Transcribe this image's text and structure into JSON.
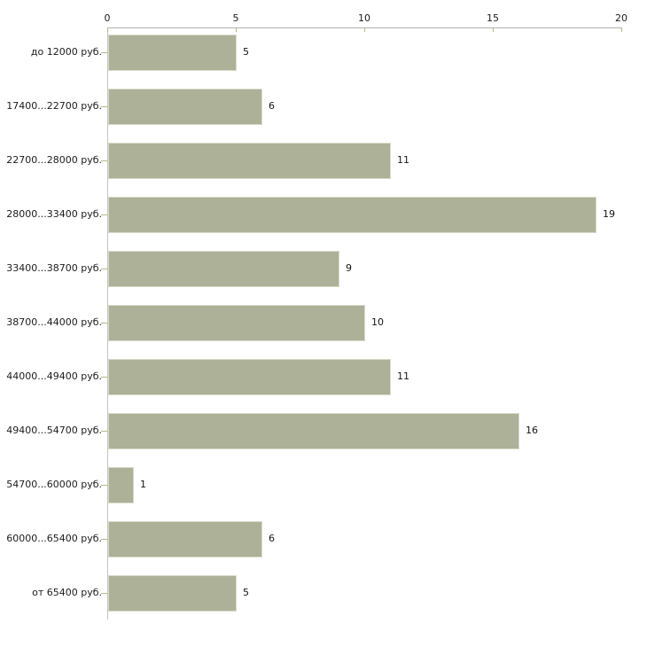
{
  "chart_data": {
    "type": "bar",
    "orientation": "horizontal",
    "title": "",
    "xlabel": "",
    "ylabel": "",
    "categories": [
      "до 12000 руб.",
      "17400...22700 руб.",
      "22700...28000 руб.",
      "28000...33400 руб.",
      "33400...38700 руб.",
      "38700...44000 руб.",
      "44000...49400 руб.",
      "49400...54700 руб.",
      "54700...60000 руб.",
      "60000...65400 руб.",
      "от 65400 руб."
    ],
    "values": [
      5,
      6,
      11,
      19,
      9,
      10,
      11,
      16,
      1,
      6,
      5
    ],
    "xlim": [
      0,
      20
    ],
    "xticks": [
      0,
      5,
      10,
      15,
      20
    ],
    "grid": false,
    "legend": false,
    "axis_position": "top",
    "colors": {
      "bar_fill": "#acb197",
      "bar_edge": "#d9dbc9",
      "x_axis_line": "#b0b0b0",
      "y_axis_line": "#c3c3c3",
      "tick_mark": "#b6ba85",
      "text": "#1c1c1c",
      "background": "#ffffff"
    }
  }
}
